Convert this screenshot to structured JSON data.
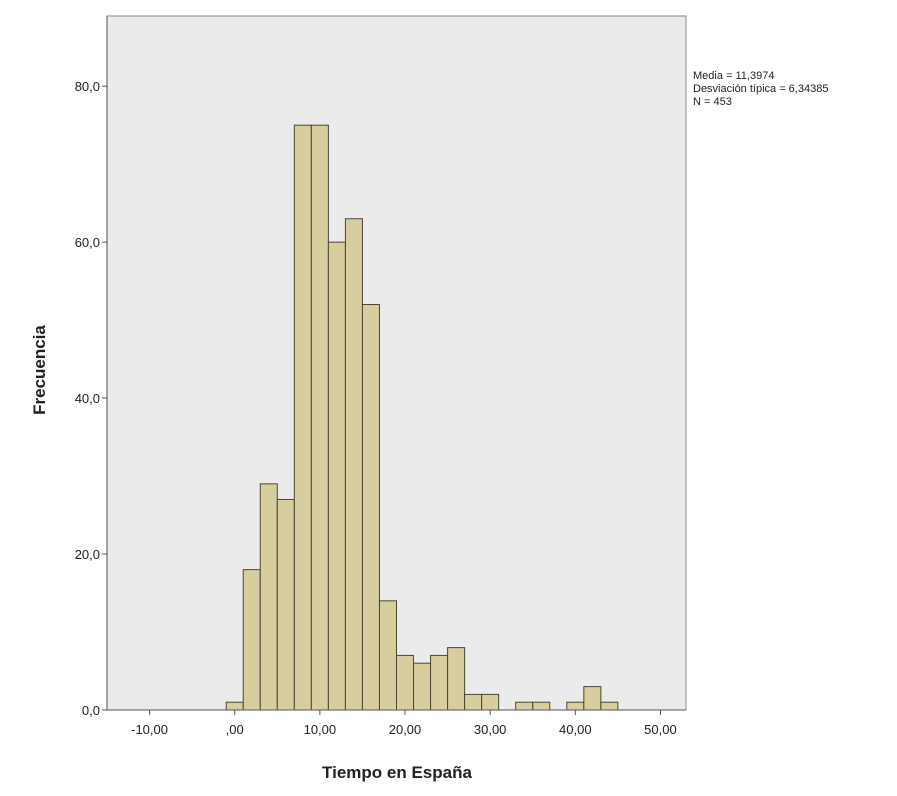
{
  "chart_data": {
    "type": "bar",
    "xlabel": "Tiempo en España",
    "ylabel": "Frecuencia",
    "xlim": [
      -15,
      53
    ],
    "ylim": [
      0,
      89
    ],
    "x_ticks": [
      {
        "value": -10,
        "label": "-10,00"
      },
      {
        "value": 0,
        "label": ",00"
      },
      {
        "value": 10,
        "label": "10,00"
      },
      {
        "value": 20,
        "label": "20,00"
      },
      {
        "value": 30,
        "label": "30,00"
      },
      {
        "value": 40,
        "label": "40,00"
      },
      {
        "value": 50,
        "label": "50,00"
      }
    ],
    "y_ticks": [
      {
        "value": 0,
        "label": "0,0"
      },
      {
        "value": 20,
        "label": "20,0"
      },
      {
        "value": 40,
        "label": "40,0"
      },
      {
        "value": 60,
        "label": "60,0"
      },
      {
        "value": 80,
        "label": "80,0"
      }
    ],
    "bin_width": 2,
    "bins": [
      {
        "start": -1,
        "end": 1,
        "count": 1
      },
      {
        "start": 1,
        "end": 3,
        "count": 18
      },
      {
        "start": 3,
        "end": 5,
        "count": 29
      },
      {
        "start": 5,
        "end": 7,
        "count": 27
      },
      {
        "start": 7,
        "end": 9,
        "count": 75
      },
      {
        "start": 9,
        "end": 11,
        "count": 75
      },
      {
        "start": 11,
        "end": 13,
        "count": 60
      },
      {
        "start": 13,
        "end": 15,
        "count": 63
      },
      {
        "start": 15,
        "end": 17,
        "count": 52
      },
      {
        "start": 17,
        "end": 19,
        "count": 14
      },
      {
        "start": 19,
        "end": 21,
        "count": 7
      },
      {
        "start": 21,
        "end": 23,
        "count": 6
      },
      {
        "start": 23,
        "end": 25,
        "count": 7
      },
      {
        "start": 25,
        "end": 27,
        "count": 8
      },
      {
        "start": 27,
        "end": 29,
        "count": 2
      },
      {
        "start": 29,
        "end": 31,
        "count": 2
      },
      {
        "start": 33,
        "end": 35,
        "count": 1
      },
      {
        "start": 35,
        "end": 37,
        "count": 1
      },
      {
        "start": 39,
        "end": 41,
        "count": 1
      },
      {
        "start": 41,
        "end": 43,
        "count": 3
      },
      {
        "start": 43,
        "end": 45,
        "count": 1
      }
    ],
    "stats": [
      "Media = 11,3974",
      "Desviación típica = 6,34385",
      "N = 453"
    ],
    "grid": false
  },
  "colors": {
    "plot_background": "#ebebeb",
    "bar_fill": "#d7cd9e",
    "bar_stroke": "#4a4636",
    "axis": "#555555",
    "text": "#222222"
  }
}
